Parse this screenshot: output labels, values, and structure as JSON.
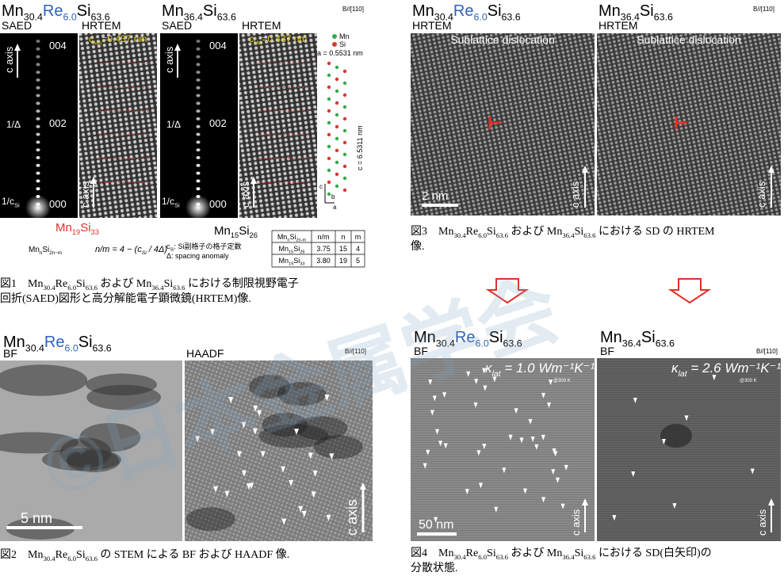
{
  "watermark": "©日本金属学会",
  "fig1": {
    "panels": [
      {
        "title": {
          "parts": [
            "Mn",
            "30.4",
            "Re",
            "6.0",
            "Si",
            "63.6"
          ],
          "highlight": [
            2,
            3
          ]
        },
        "saed": "SAED",
        "hrtem": "HRTEM",
        "saed_labels": [
          "004",
          "002",
          "000"
        ],
        "c_axis": "c axis",
        "inv_delta": "1/Δ",
        "inv_csi": [
          "1/c",
          "Si"
        ],
        "c_mn": [
          "c",
          "Mn",
          "=0.437 nm"
        ],
        "hrtem_c_axis": "c axis"
      },
      {
        "title": {
          "parts": [
            "Mn",
            "36.4",
            "Si",
            "63.6"
          ],
          "highlight": []
        },
        "zone": "B//[110]",
        "saed": "SAED",
        "hrtem": "HRTEM",
        "saed_labels": [
          "004",
          "002",
          "000"
        ],
        "c_axis": "c axis",
        "inv_delta": "1/Δ",
        "inv_csi": [
          "1/c",
          "Si"
        ],
        "c_mn": [
          "c",
          "Mn",
          "=0.437 nm"
        ],
        "hrtem_c_axis": "c axis"
      }
    ],
    "structure": {
      "legend": [
        "Mn",
        "Si"
      ],
      "a": "a = 0.5531 nm",
      "c": "c = 6.5311 nm",
      "axes": [
        "c",
        "b",
        "a"
      ]
    },
    "phase_left": [
      "Mn",
      "19",
      "Si",
      "33"
    ],
    "phase_right": [
      "Mn",
      "15",
      "Si",
      "26"
    ],
    "formula": [
      "Mn",
      "n",
      "Si",
      "2n−m"
    ],
    "relation": [
      "n/m = 4 − (c",
      "Si",
      " / 4Δ)"
    ],
    "notes": [
      [
        "c",
        "Si",
        ": Si副格子の格子定数"
      ],
      [
        "Δ: spacing anomaly"
      ]
    ],
    "table": {
      "header": [
        [
          "Mn",
          "n",
          "Si",
          "2n-m"
        ],
        [
          "n/m"
        ],
        [
          "n"
        ],
        [
          "m"
        ]
      ],
      "rows": [
        [
          [
            "Mn",
            "15",
            "Si",
            "26"
          ],
          [
            "3.75"
          ],
          [
            "15"
          ],
          [
            "4"
          ]
        ],
        [
          [
            "Mn",
            "19",
            "Si",
            "33"
          ],
          [
            "3.80"
          ],
          [
            "19"
          ],
          [
            "5"
          ]
        ]
      ]
    },
    "caption": [
      [
        "図1　Mn",
        "30.4",
        "Re",
        "6.0",
        "Si",
        "63.6",
        " および Mn",
        "36.4",
        "Si",
        "63.6",
        " における制限視野電子"
      ],
      [
        "回折(SAED)図形と高分解能電子顕微鏡(HRTEM)像."
      ]
    ]
  },
  "fig3": {
    "panels": [
      {
        "title": {
          "parts": [
            "Mn",
            "30.4",
            "Re",
            "6.0",
            "Si",
            "63.6"
          ],
          "highlight": [
            2,
            3
          ]
        },
        "mode": "HRTEM",
        "label": "Sublattice dislocation",
        "scale": "2 nm",
        "c_axis": "c axis"
      },
      {
        "title": {
          "parts": [
            "Mn",
            "36.4",
            "Si",
            "63.6"
          ],
          "highlight": []
        },
        "mode": "HRTEM",
        "label": "Sublattice dislocation",
        "zone": "B//[110]",
        "c_axis": "c axis"
      }
    ],
    "caption": [
      [
        "図3　Mn",
        "30.4",
        "Re",
        "6.0",
        "Si",
        "63.6",
        " および Mn",
        "36.4",
        "Si",
        "63.6",
        " における SD の HRTEM"
      ],
      [
        "像."
      ]
    ]
  },
  "fig2": {
    "title": {
      "parts": [
        "Mn",
        "30.4",
        "Re",
        "6.0",
        "Si",
        "63.6"
      ],
      "highlight": [
        2,
        3
      ]
    },
    "bf": "BF",
    "haadf": "HAADF",
    "zone": "B//[110]",
    "scale": "5 nm",
    "c_axis": "c axis",
    "caption": [
      [
        "図2　Mn",
        "30.4",
        "Re",
        "6.0",
        "Si",
        "63.6",
        " の STEM による BF および HAADF 像."
      ]
    ]
  },
  "fig4": {
    "panels": [
      {
        "title": {
          "parts": [
            "Mn",
            "30.4",
            "Re",
            "6.0",
            "Si",
            "63.6"
          ],
          "highlight": [
            2,
            3
          ]
        },
        "mode": "BF",
        "kappa": [
          "κ",
          "lat",
          " = 1.0 Wm⁻¹K⁻¹"
        ],
        "temp": "@300 K",
        "scale": "50 nm",
        "c_axis": "c axis"
      },
      {
        "title": {
          "parts": [
            "Mn",
            "36.4",
            "Si",
            "63.6"
          ],
          "highlight": []
        },
        "mode": "BF",
        "zone": "B//[110]",
        "kappa": [
          "κ",
          "lat",
          " = 2.6 Wm⁻¹K⁻¹"
        ],
        "temp": "@300 K",
        "c_axis": "c axis"
      }
    ],
    "caption": [
      [
        "図4　Mn",
        "30.4",
        "Re",
        "6.0",
        "Si",
        "63.6",
        " および Mn",
        "36.4",
        "Si",
        "63.6",
        " における SD(白矢印)の"
      ],
      [
        "分散状態."
      ]
    ]
  },
  "highlight_color": "#2f62b8",
  "phase_color": "#e0302a"
}
